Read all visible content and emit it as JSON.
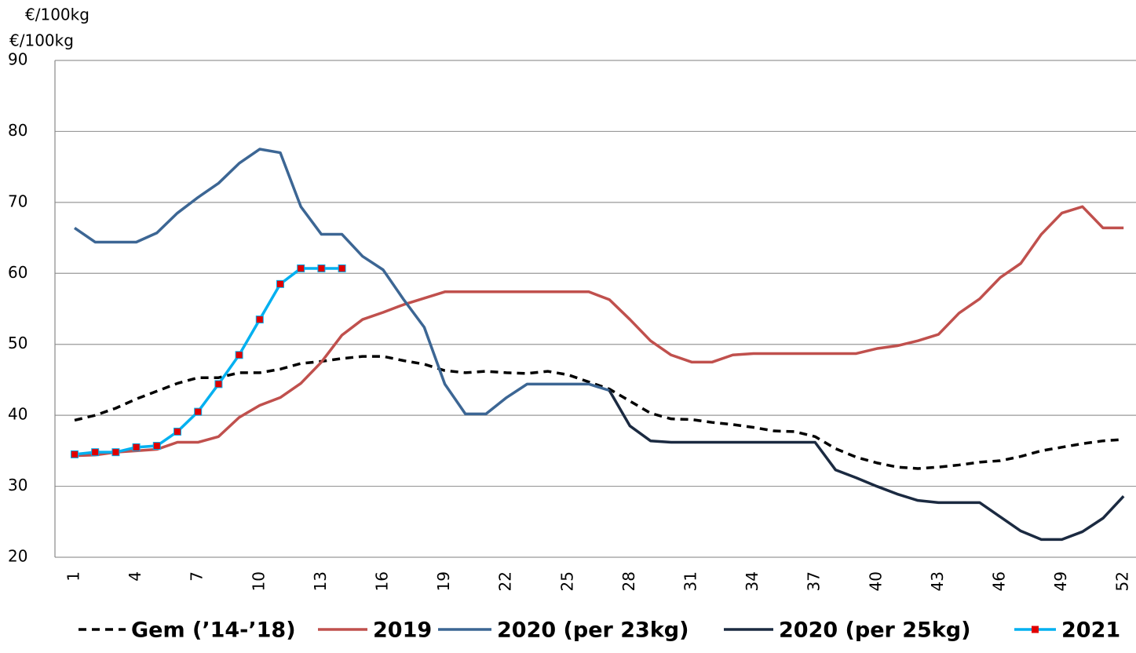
{
  "chart_data": {
    "type": "line",
    "axis_labels": [
      "€/100kg",
      "€/100kg"
    ],
    "categories": [
      "1",
      null,
      null,
      "4",
      null,
      null,
      "7",
      null,
      null,
      "10",
      null,
      null,
      "13",
      null,
      null,
      "16",
      null,
      null,
      "19",
      null,
      null,
      "22",
      null,
      null,
      "25",
      null,
      null,
      "28",
      null,
      null,
      "31",
      null,
      null,
      "34",
      null,
      null,
      "37",
      null,
      null,
      "40",
      null,
      null,
      "43",
      null,
      null,
      "46",
      null,
      null,
      "49",
      null,
      null,
      "52"
    ],
    "ylim": [
      20,
      90
    ],
    "yticks": [
      20,
      30,
      40,
      50,
      60,
      70,
      80,
      90
    ],
    "grid": true,
    "legend": "bottom",
    "series": [
      {
        "name": "Gem (’14-’18)",
        "color": "#000000",
        "dashed": true,
        "values": [
          39.3,
          40,
          41,
          42.3,
          43.4,
          44.5,
          45.3,
          45.3,
          46,
          46,
          46.5,
          47.3,
          47.6,
          48,
          48.3,
          48.3,
          47.7,
          47.2,
          46.3,
          46,
          46.2,
          46,
          45.9,
          46.2,
          45.7,
          44.7,
          43.7,
          42,
          40.3,
          39.5,
          39.4,
          39,
          38.7,
          38.3,
          37.8,
          37.7,
          37,
          35.3,
          34.1,
          33.3,
          32.7,
          32.5,
          32.7,
          33,
          33.4,
          33.6,
          34.2,
          35,
          35.5,
          36,
          36.4,
          36.6
        ]
      },
      {
        "name": "2019",
        "color": "#c0504d",
        "values": [
          34.3,
          34.4,
          34.8,
          35,
          35.2,
          36.2,
          36.2,
          37,
          39.7,
          41.4,
          42.5,
          44.5,
          47.5,
          51.3,
          53.5,
          54.5,
          55.6,
          56.5,
          57.4,
          57.4,
          57.4,
          57.4,
          57.4,
          57.4,
          57.4,
          57.4,
          56.3,
          53.5,
          50.5,
          48.5,
          47.5,
          47.5,
          48.5,
          48.7,
          48.7,
          48.7,
          48.7,
          48.7,
          48.7,
          49.4,
          49.8,
          50.5,
          51.4,
          54.4,
          56.4,
          59.4,
          61.4,
          65.5,
          68.5,
          69.4,
          66.4,
          66.4
        ]
      },
      {
        "name": "2020 (per 23kg)",
        "color": "#3c6694",
        "values": [
          66.4,
          64.4,
          64.4,
          64.4,
          65.7,
          68.5,
          70.7,
          72.7,
          75.5,
          77.5,
          77,
          69.4,
          65.5,
          65.5,
          62.4,
          60.5,
          56.3,
          52.4,
          44.4,
          40.2,
          40.2,
          42.5,
          44.4,
          44.4,
          44.4,
          44.4,
          43.5,
          null,
          null,
          null,
          null,
          null,
          null,
          null,
          null,
          null,
          null,
          null,
          null,
          null,
          null,
          null,
          null,
          null,
          null,
          null,
          null,
          null,
          null,
          null,
          null,
          null
        ]
      },
      {
        "name": "2020 (per 25kg)",
        "color": "#1b2a41",
        "values": [
          null,
          null,
          null,
          null,
          null,
          null,
          null,
          null,
          null,
          null,
          null,
          null,
          null,
          null,
          null,
          null,
          null,
          null,
          null,
          null,
          null,
          null,
          null,
          null,
          null,
          null,
          43.5,
          38.5,
          36.4,
          36.2,
          36.2,
          36.2,
          36.2,
          36.2,
          36.2,
          36.2,
          36.2,
          32.3,
          31.2,
          30,
          28.9,
          28,
          27.7,
          27.7,
          27.7,
          25.7,
          23.7,
          22.5,
          22.5,
          23.6,
          25.5,
          28.6
        ]
      },
      {
        "name": "2021",
        "color": "#00b0f0",
        "marker_color": "#e00000",
        "values": [
          34.5,
          34.8,
          34.8,
          35.5,
          35.7,
          37.7,
          40.5,
          44.4,
          48.5,
          53.5,
          58.5,
          60.7,
          60.7,
          60.7,
          null,
          null,
          null,
          null,
          null,
          null,
          null,
          null,
          null,
          null,
          null,
          null,
          null,
          null,
          null,
          null,
          null,
          null,
          null,
          null,
          null,
          null,
          null,
          null,
          null,
          null,
          null,
          null,
          null,
          null,
          null,
          null,
          null,
          null,
          null,
          null,
          null,
          null
        ]
      }
    ]
  }
}
